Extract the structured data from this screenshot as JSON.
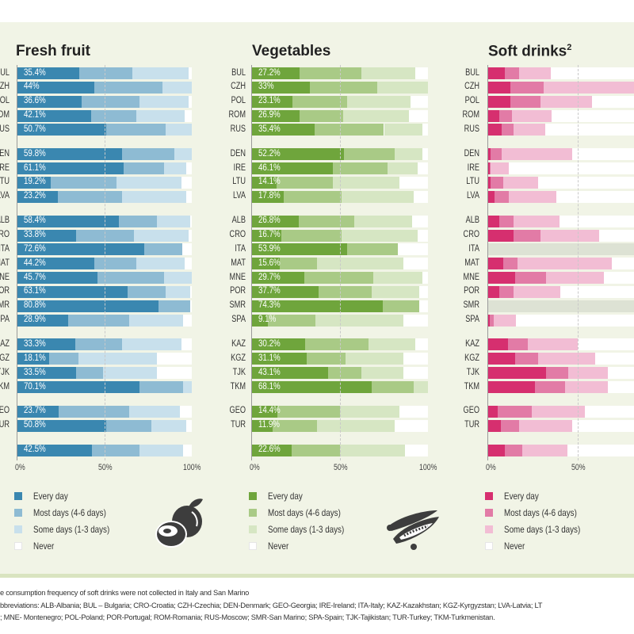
{
  "legend_labels": [
    "Every day",
    "Most days (4-6 days)",
    "Some days (1-3 days)",
    "Never"
  ],
  "footnotes": [
    "e consumption frequency of soft drinks were not collected in Italy and San Marino",
    "bbreviations: ALB-Albania; BUL – Bulgaria; CRO-Croatia; CZH-Czechia; DEN-Denmark; GEO-Georgia; IRE-Ireland;  ITA-Italy; KAZ-Kazakhstan; KGZ-Kyrgyzstan; LVA-Latvia; LT",
    "; MNE- Montenegro; POL-Poland; POR-Portugal; ROM-Romania; RUS-Moscow; SMR-San Marino; SPA-Spain; TJK-Tajikistan; TUR-Turkey; TKM-Turkmenistan."
  ],
  "chart_data": [
    {
      "type": "bar",
      "orientation": "horizontal-stacked",
      "title": "Fresh fruit",
      "icon": "apple-icon",
      "colors": {
        "every": "#3a87b0",
        "most": "#8ebbd3",
        "some": "#c8e0ec",
        "never": "#ffffff"
      },
      "xlim": [
        0,
        100
      ],
      "ticks": [
        "0%",
        "50%",
        "100%"
      ],
      "tick_values": [
        0,
        50,
        100
      ],
      "categories": [
        "BUL",
        "CZH",
        "POL",
        "ROM",
        "RUS",
        "DEN",
        "IRE",
        "LTU",
        "LVA",
        "ALB",
        "CRO",
        "ITA",
        "MAT",
        "MNE",
        "POR",
        "SMR",
        "SPA",
        "KAZ",
        "KGZ",
        "TJK",
        "TKM",
        "GEO",
        "TUR",
        ""
      ],
      "groups": [
        5,
        4,
        8,
        4,
        2,
        1
      ],
      "labels": [
        "35.4%",
        "44%",
        "36.6%",
        "42.1%",
        "50.7%",
        "59.8%",
        "61.1%",
        "19.2%",
        "23.2%",
        "58.4%",
        "33.8%",
        "72.6%",
        "44.2%",
        "45.7%",
        "63.1%",
        "80.8%",
        "28.9%",
        "33.3%",
        "18.1%",
        "33.5%",
        "70.1%",
        "23.7%",
        "50.8%",
        "42.5%"
      ],
      "series": [
        {
          "name": "Every day",
          "values": [
            35.4,
            44,
            36.6,
            42.1,
            50.7,
            59.8,
            61.1,
            19.2,
            23.2,
            58.4,
            33.8,
            72.6,
            44.2,
            45.7,
            63.1,
            80.8,
            28.9,
            33.3,
            18.1,
            33.5,
            70.1,
            23.7,
            50.8,
            42.5
          ]
        },
        {
          "name": "Most days (4-6 days)",
          "values": [
            30.6,
            39,
            33.4,
            25.9,
            34.3,
            30.2,
            22.9,
            37.8,
            36.8,
            21.6,
            33.2,
            21.9,
            23.8,
            38.3,
            21.9,
            18.2,
            35.1,
            26.7,
            16.9,
            15.5,
            24.9,
            40.3,
            26.2,
            27.5
          ]
        },
        {
          "name": "Some days (1-3 days)",
          "values": [
            32,
            17,
            28,
            28,
            15,
            10,
            13,
            37,
            37,
            19,
            31,
            0,
            28,
            16,
            14,
            0,
            31,
            34,
            45,
            31,
            5,
            29,
            20,
            25
          ]
        }
      ]
    },
    {
      "type": "bar",
      "orientation": "horizontal-stacked",
      "title": "Vegetables",
      "icon": "peapod-icon",
      "colors": {
        "every": "#6fa53c",
        "most": "#a9ca86",
        "some": "#d6e6c3",
        "never": "#ffffff"
      },
      "xlim": [
        0,
        100
      ],
      "ticks": [
        "0%",
        "50%",
        "100%"
      ],
      "tick_values": [
        0,
        50,
        100
      ],
      "categories": [
        "BUL",
        "CZH",
        "POL",
        "ROM",
        "RUS",
        "DEN",
        "IRE",
        "LTU",
        "LVA",
        "ALB",
        "CRO",
        "ITA",
        "MAT",
        "MNE",
        "POR",
        "SMR",
        "SPA",
        "KAZ",
        "KGZ",
        "TJK",
        "TKM",
        "GEO",
        "TUR",
        ""
      ],
      "groups": [
        5,
        4,
        8,
        4,
        2,
        1
      ],
      "labels": [
        "27.2%",
        "33%",
        "23.1%",
        "26.9%",
        "35.4%",
        "52.2%",
        "46.1%",
        "14.1%",
        "17.8%",
        "26.8%",
        "16.7%",
        "53.9%",
        "15.6%",
        "29.7%",
        "37.7%",
        "74.3%",
        "9.1%",
        "30.2%",
        "31.1%",
        "43.1%",
        "68.1%",
        "14.4%",
        "11.9%",
        "22.6%"
      ],
      "series": [
        {
          "name": "Every day",
          "values": [
            27.2,
            33,
            23.1,
            26.9,
            35.4,
            52.2,
            46.1,
            14.1,
            17.8,
            26.8,
            16.7,
            53.9,
            15.6,
            29.7,
            37.7,
            74.3,
            9.1,
            30.2,
            31.1,
            43.1,
            68.1,
            14.4,
            11.9,
            22.6
          ]
        },
        {
          "name": "Most days (4-6 days)",
          "values": [
            34.8,
            38,
            30.9,
            25.1,
            39.6,
            28.8,
            30.9,
            31.9,
            33.2,
            31.2,
            34.3,
            29.1,
            21.4,
            39.3,
            30.3,
            20.7,
            26.9,
            35.8,
            21.9,
            18.9,
            23.9,
            35.6,
            25.1,
            27.4
          ]
        },
        {
          "name": "Some days (1-3 days)",
          "values": [
            31,
            29,
            36,
            37,
            22,
            16,
            17,
            38,
            41,
            33,
            43,
            0,
            49,
            28,
            27,
            0,
            50,
            27,
            33,
            24,
            8,
            34,
            44,
            37
          ]
        }
      ]
    },
    {
      "type": "bar",
      "orientation": "horizontal-stacked",
      "title": "Soft drinks",
      "title_superscript": "2",
      "colors": {
        "every": "#d62f6f",
        "most": "#e27ba6",
        "some": "#f2bdd4",
        "never": "#ffffff",
        "missing": "#dde2d4"
      },
      "xlim": [
        0,
        100
      ],
      "ticks": [
        "0%",
        "50%"
      ],
      "tick_values": [
        0,
        50
      ],
      "categories": [
        "BUL",
        "CZH",
        "POL",
        "ROM",
        "RUS",
        "DEN",
        "IRE",
        "LTU",
        "LVA",
        "ALB",
        "CRO",
        "ITA",
        "MAT",
        "MNE",
        "POR",
        "SMR",
        "SPA",
        "KAZ",
        "KGZ",
        "TJK",
        "TKM",
        "GEO",
        "TUR",
        ""
      ],
      "groups": [
        5,
        4,
        8,
        4,
        2,
        1
      ],
      "series": [
        {
          "name": "Every day",
          "values": [
            9.2,
            12.4,
            12.4,
            6,
            7.7,
            1.3,
            0.9,
            1.3,
            3.5,
            6,
            14.2,
            null,
            8.4,
            14.9,
            6,
            null,
            0.9,
            10.9,
            14.9,
            32.4,
            26.1,
            5.3,
            6.9,
            9.2
          ]
        },
        {
          "name": "Most days (4-6 days)",
          "values": [
            8.1,
            18.6,
            16.8,
            7.3,
            6.5,
            6.4,
            0.6,
            7.1,
            8.1,
            8.2,
            15,
            null,
            8,
            17.5,
            8.2,
            null,
            2.1,
            11.2,
            12.8,
            12.2,
            16.8,
            19,
            10.4,
            9.7
          ]
        },
        {
          "name": "Some days (1-3 days)",
          "values": [
            17.5,
            55,
            28.6,
            22.2,
            17.5,
            39.1,
            10,
            19.3,
            26.4,
            25.5,
            32.8,
            null,
            52.8,
            32.1,
            26.2,
            null,
            12.5,
            27.9,
            31.9,
            22.4,
            24.1,
            29.7,
            29.6,
            25.5
          ]
        }
      ]
    }
  ]
}
